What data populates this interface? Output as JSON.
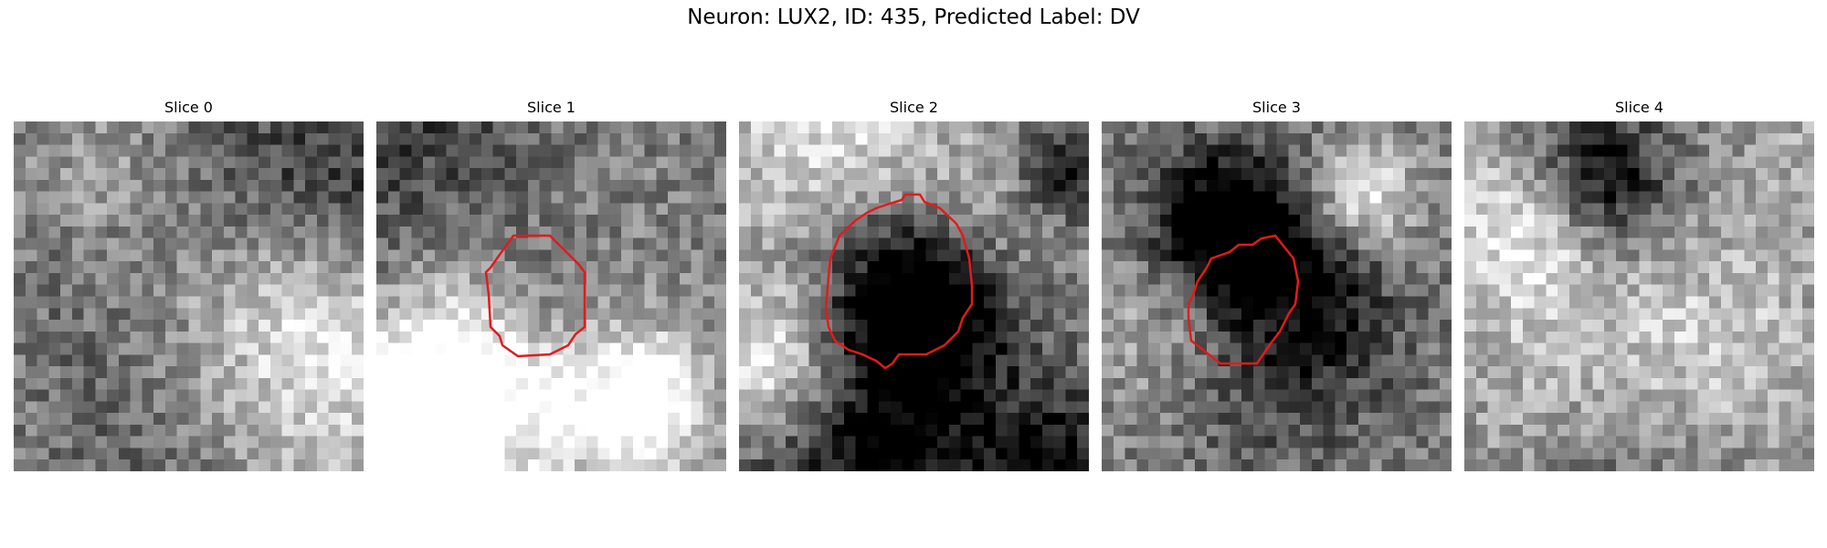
{
  "figure": {
    "title": "Neuron: LUX2, ID: 435, Predicted Label: DV",
    "contour_color": "#e31a1c",
    "colormap": "gray"
  },
  "panels": [
    {
      "title": "Slice 0",
      "seed": 11,
      "has_contour": false
    },
    {
      "title": "Slice 1",
      "seed": 23,
      "has_contour": true
    },
    {
      "title": "Slice 2",
      "seed": 37,
      "has_contour": true
    },
    {
      "title": "Slice 3",
      "seed": 51,
      "has_contour": true
    },
    {
      "title": "Slice 4",
      "seed": 67,
      "has_contour": false
    }
  ]
}
